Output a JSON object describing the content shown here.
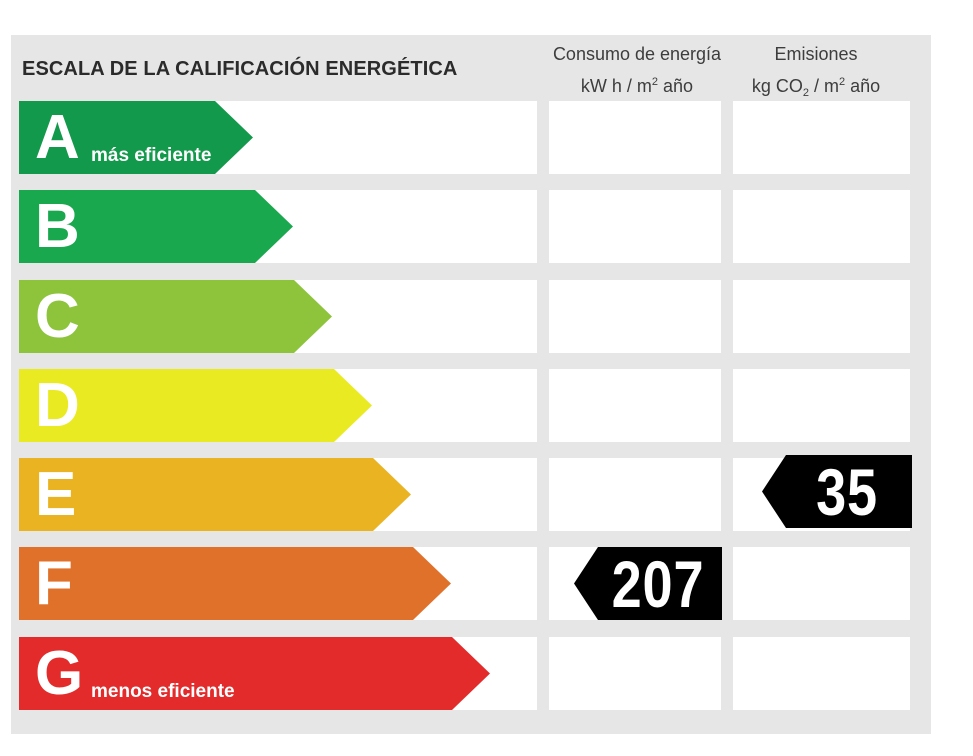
{
  "header": {
    "title": "ESCALA DE LA CALIFICACIÓN ENERGÉTICA",
    "energy_line1": "Consumo de energía",
    "energy_unit_a": "kW h  / m",
    "energy_unit_sup": "2",
    "energy_unit_b": " año",
    "emissions_line1": "Emisiones",
    "emissions_unit_a": "kg CO",
    "emissions_unit_sub": "2",
    "emissions_unit_b": "  / m",
    "emissions_unit_sup": "2",
    "emissions_unit_c": " año"
  },
  "classes": [
    {
      "letter": "A",
      "sublabel": "más eficiente",
      "color": "#13994b"
    },
    {
      "letter": "B",
      "sublabel": "",
      "color": "#1aa84f"
    },
    {
      "letter": "C",
      "sublabel": "",
      "color": "#8dc43c"
    },
    {
      "letter": "D",
      "sublabel": "",
      "color": "#eaea22"
    },
    {
      "letter": "E",
      "sublabel": "",
      "color": "#eab321"
    },
    {
      "letter": "F",
      "sublabel": "",
      "color": "#e0712a"
    },
    {
      "letter": "G",
      "sublabel": "menos eficiente",
      "color": "#e22b2a"
    }
  ],
  "ratings": {
    "energy": {
      "class": "F",
      "value": "207"
    },
    "emissions": {
      "class": "E",
      "value": "35"
    }
  },
  "colors": {
    "panel": "#e6e6e6",
    "marker": "#000000"
  }
}
